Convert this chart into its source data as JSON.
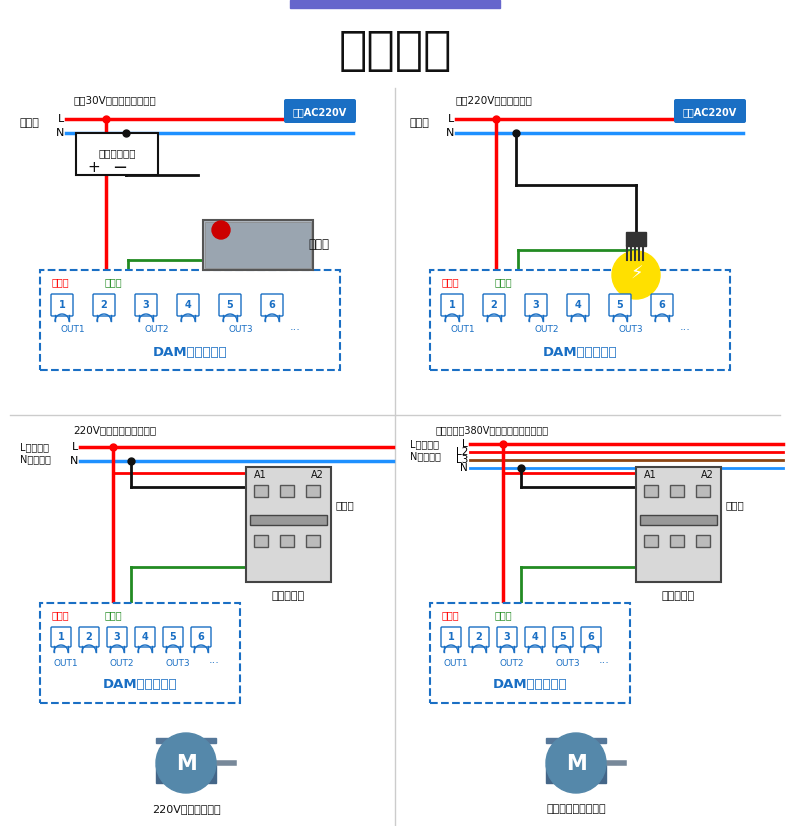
{
  "title": "输出接线",
  "bg_color": "#ffffff",
  "top_bar_color": "#6666cc",
  "panel1_title": "直流30V以下设备接线方法",
  "panel2_title": "交流220V设备接线方法",
  "panel3_title": "220V接交流接触器接线图",
  "panel4_title": "带零线交流380V接电机、泵等设备接线",
  "xianquan_label": "线圈AC220V",
  "xianquan_color": "#1a6fc4",
  "dam_label": "DAM数采控制器",
  "out_labels": [
    "OUT1",
    "OUT2",
    "OUT3"
  ],
  "red": "#ff0000",
  "blue": "#1e90ff",
  "green": "#228b22",
  "black": "#111111",
  "brown": "#8B4513",
  "dashed_blue": "#1a6fc4"
}
